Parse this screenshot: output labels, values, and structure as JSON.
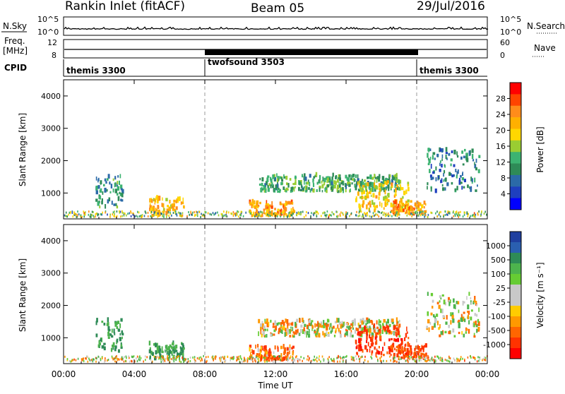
{
  "header": {
    "station": "Rankin Inlet (fitACF)",
    "beam": "Beam 05",
    "date": "29/Jul/2016"
  },
  "top_panels": {
    "nsky_label": "N.Sky",
    "nsearch_label": "N.Search",
    "nsky_ticks": [
      "10^5",
      "10^0"
    ],
    "freq_label_1": "Freq.",
    "freq_label_2": "[MHz]",
    "freq_ticks": [
      "12",
      "8"
    ],
    "nave_label": "Nave",
    "nave_ticks": [
      "60",
      "0"
    ],
    "cpid_label": "CPID",
    "cpid_segments": [
      {
        "name": "themis 3300",
        "start_hour": 0,
        "end_hour": 8
      },
      {
        "name": "twofsound 3503",
        "start_hour": 8,
        "end_hour": 20
      },
      {
        "name": "themis 3300",
        "start_hour": 20,
        "end_hour": 24
      }
    ]
  },
  "panels": {
    "power": {
      "ylabel": "Slant Range [km]",
      "colorbar_label": "Power [dB]",
      "colorbar_ticks": [
        "28",
        "24",
        "20",
        "16",
        "12",
        "8",
        "4"
      ],
      "colors": [
        "#ff0000",
        "#ff4400",
        "#ff8c1a",
        "#ffb000",
        "#ffd700",
        "#9acd32",
        "#3cb371",
        "#2e8b57",
        "#2b6aa8",
        "#1e3fbf",
        "#0000ff"
      ]
    },
    "velocity": {
      "ylabel": "Slant Range [km]",
      "colorbar_label": "Velocity [m s⁻¹]",
      "colorbar_ticks": [
        "1000",
        "500",
        "100",
        "25",
        "-25",
        "-100",
        "-500",
        "-1000"
      ],
      "colors": [
        "#1f3f9f",
        "#2a5fb0",
        "#2e8b57",
        "#4db34d",
        "#66cc33",
        "#c8c8c8",
        "#c8c8c8",
        "#ffcc00",
        "#ff9900",
        "#ff6600",
        "#ff3300",
        "#ff0000"
      ]
    }
  },
  "x_axis": {
    "label": "Time UT",
    "ticks": [
      "00:00",
      "04:00",
      "08:00",
      "12:00",
      "16:00",
      "20:00",
      "00:00"
    ]
  },
  "chart_data": {
    "type": "heatmap",
    "title": "Rankin Inlet (fitACF)",
    "x": {
      "label": "Time UT",
      "range_hours": [
        0,
        24
      ],
      "ticks": [
        "00:00",
        "04:00",
        "08:00",
        "12:00",
        "16:00",
        "20:00",
        "00:00"
      ]
    },
    "y": {
      "label": "Slant Range [km]",
      "range_km": [
        200,
        4500
      ],
      "ticks": [
        1000,
        2000,
        3000,
        4000
      ]
    },
    "power_scale_db": [
      4,
      8,
      12,
      16,
      20,
      24,
      28
    ],
    "velocity_scale_ms": [
      -1000,
      -500,
      -100,
      -25,
      25,
      100,
      500,
      1000
    ],
    "echo_regions": [
      {
        "t0": 1.8,
        "t1": 3.3,
        "r0": 500,
        "r1": 1500,
        "power": 10,
        "velocity": 300
      },
      {
        "t0": 4.8,
        "t1": 6.8,
        "r0": 250,
        "r1": 800,
        "power": 22,
        "velocity": 300
      },
      {
        "t0": 10.5,
        "t1": 13.0,
        "r0": 250,
        "r1": 700,
        "power": 24,
        "velocity": -200
      },
      {
        "t0": 11.0,
        "t1": 19.0,
        "r0": 1000,
        "r1": 1500,
        "power": 12,
        "velocity": 0
      },
      {
        "t0": 16.5,
        "t1": 19.5,
        "r0": 400,
        "r1": 1300,
        "power": 20,
        "velocity": -400
      },
      {
        "t0": 18.5,
        "t1": 20.5,
        "r0": 300,
        "r1": 700,
        "power": 24,
        "velocity": -300
      },
      {
        "t0": 20.5,
        "t1": 23.5,
        "r0": 1000,
        "r1": 2300,
        "power": 8,
        "velocity": 20
      }
    ]
  }
}
